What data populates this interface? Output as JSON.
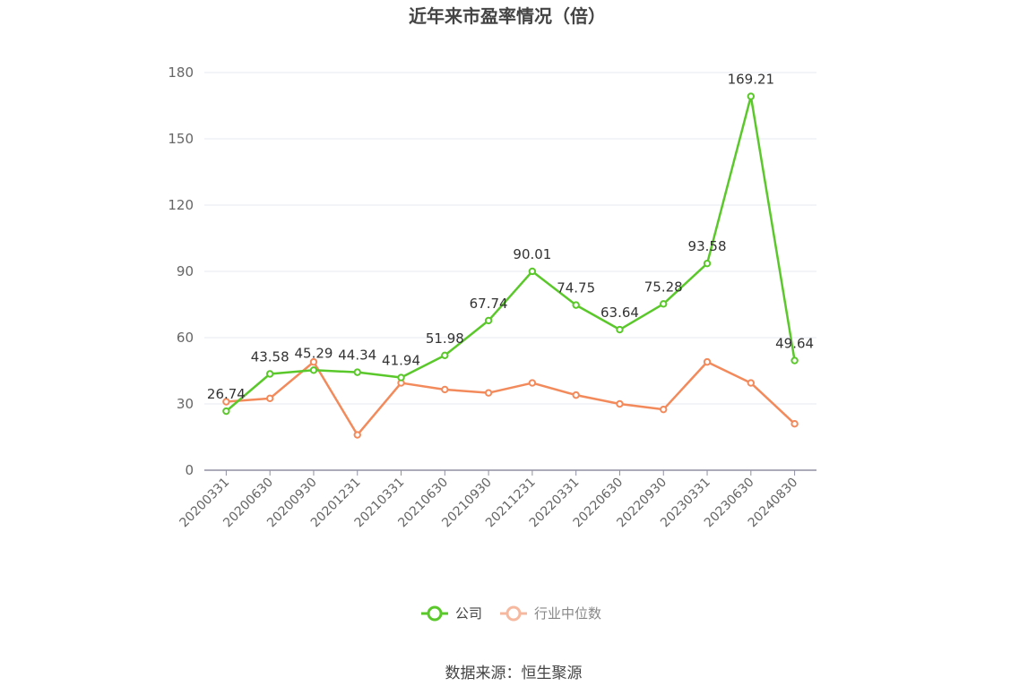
{
  "chart_data": {
    "type": "line",
    "title": "近年来市盈率情况（倍）",
    "categories": [
      "20200331",
      "20200630",
      "20200930",
      "20201231",
      "20210331",
      "20210630",
      "20210930",
      "20211231",
      "20220331",
      "20220630",
      "20220930",
      "20230331",
      "20230630",
      "20240830"
    ],
    "series": [
      {
        "name": "公司",
        "color": "#5ac82a",
        "show_labels": true,
        "values": [
          26.74,
          43.58,
          45.29,
          44.34,
          41.94,
          51.98,
          67.74,
          90.01,
          74.75,
          63.64,
          75.28,
          93.58,
          169.21,
          49.64
        ]
      },
      {
        "name": "行业中位数",
        "color": "#f28a5c",
        "show_labels": false,
        "values": [
          31,
          32.5,
          49,
          16,
          39.5,
          36.5,
          35,
          39.5,
          34,
          30,
          27.5,
          49,
          39.5,
          21
        ]
      }
    ],
    "ylim": [
      0,
      180
    ],
    "yticks": [
      0,
      30,
      60,
      90,
      120,
      150,
      180
    ],
    "xlabel": "",
    "ylabel": "",
    "grid": true,
    "legend_position": "bottom-center"
  },
  "legend": {
    "company": "公司",
    "industry": "行业中位数"
  },
  "source": "数据来源：恒生聚源"
}
